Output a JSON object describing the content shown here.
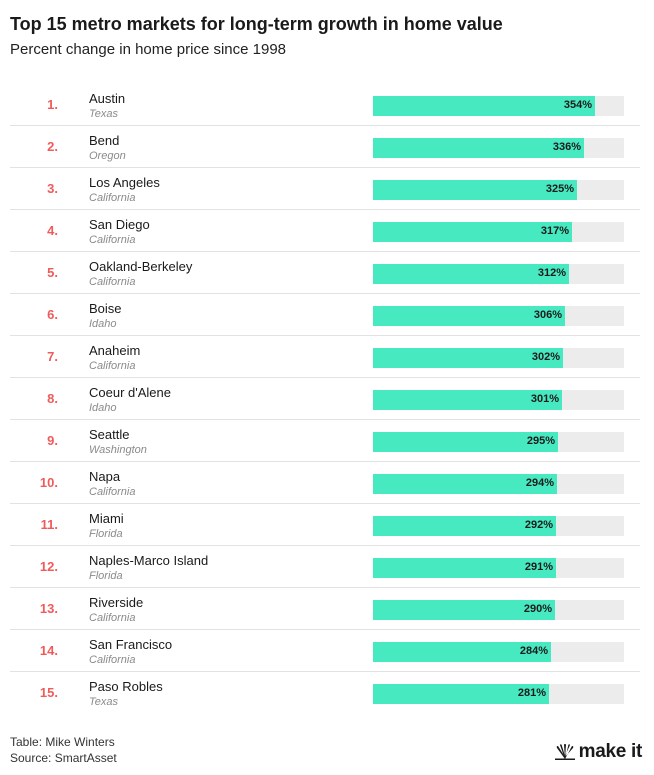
{
  "chart_data": {
    "type": "bar",
    "title": "Top 15 metro markets for long-term growth in home value",
    "subtitle": "Percent change in home price since 1998",
    "rows": [
      {
        "rank": "1.",
        "city": "Austin",
        "state": "Texas",
        "value": 354,
        "label": "354%"
      },
      {
        "rank": "2.",
        "city": "Bend",
        "state": "Oregon",
        "value": 336,
        "label": "336%"
      },
      {
        "rank": "3.",
        "city": "Los Angeles",
        "state": "California",
        "value": 325,
        "label": "325%"
      },
      {
        "rank": "4.",
        "city": "San Diego",
        "state": "California",
        "value": 317,
        "label": "317%"
      },
      {
        "rank": "5.",
        "city": "Oakland-Berkeley",
        "state": "California",
        "value": 312,
        "label": "312%"
      },
      {
        "rank": "6.",
        "city": "Boise",
        "state": "Idaho",
        "value": 306,
        "label": "306%"
      },
      {
        "rank": "7.",
        "city": "Anaheim",
        "state": "California",
        "value": 302,
        "label": "302%"
      },
      {
        "rank": "8.",
        "city": "Coeur d'Alene",
        "state": "Idaho",
        "value": 301,
        "label": "301%"
      },
      {
        "rank": "9.",
        "city": "Seattle",
        "state": "Washington",
        "value": 295,
        "label": "295%"
      },
      {
        "rank": "10.",
        "city": "Napa",
        "state": "California",
        "value": 294,
        "label": "294%"
      },
      {
        "rank": "11.",
        "city": "Miami",
        "state": "Florida",
        "value": 292,
        "label": "292%"
      },
      {
        "rank": "12.",
        "city": "Naples-Marco Island",
        "state": "Florida",
        "value": 291,
        "label": "291%"
      },
      {
        "rank": "13.",
        "city": "Riverside",
        "state": "California",
        "value": 290,
        "label": "290%"
      },
      {
        "rank": "14.",
        "city": "San Francisco",
        "state": "California",
        "value": 284,
        "label": "284%"
      },
      {
        "rank": "15.",
        "city": "Paso Robles",
        "state": "Texas",
        "value": 281,
        "label": "281%"
      }
    ],
    "xlim": [
      0,
      400
    ]
  },
  "footer": {
    "table_credit": "Table: Mike Winters",
    "source": "Source: SmartAsset",
    "logo_text": "make it"
  },
  "colors": {
    "bar": "#47e9c1",
    "track": "#ececec",
    "rank": "#ef5b5b"
  }
}
